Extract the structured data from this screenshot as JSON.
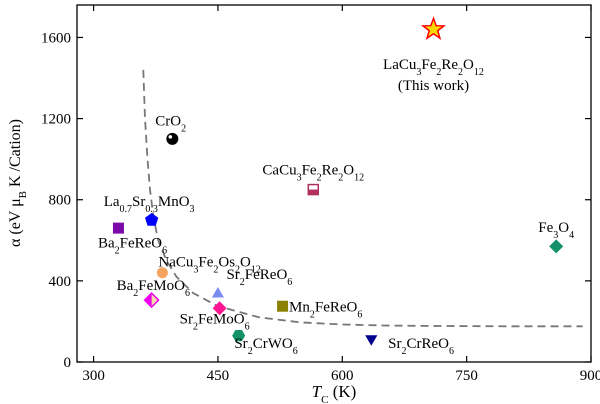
{
  "chart_data": {
    "type": "scatter",
    "xlabel_symbol": "T",
    "xlabel_subscript": "C",
    "xlabel_unit": " (K)",
    "ylabel": "α (eV μB K /Cation)",
    "ylabel_segments": [
      {
        "t": "α (eV μ",
        "sub": false
      },
      {
        "t": "B",
        "sub": true
      },
      {
        "t": " K /Cation)",
        "sub": false
      }
    ],
    "xlim": [
      280,
      900
    ],
    "ylim": [
      0,
      1760
    ],
    "xticks": [
      300,
      450,
      600,
      750,
      900
    ],
    "yticks": [
      0,
      400,
      800,
      1200,
      1600
    ],
    "grid": false,
    "points": [
      {
        "name": "LaCu3Fe2Re2O12",
        "x": 710,
        "y": 1640,
        "marker": "star",
        "color": "#ff0000",
        "fill": "#ffd700",
        "label": [
          {
            "t": "LaCu",
            "sub": false
          },
          {
            "t": "3",
            "sub": true
          },
          {
            "t": "Fe",
            "sub": false
          },
          {
            "t": "2",
            "sub": true
          },
          {
            "t": "Re",
            "sub": false
          },
          {
            "t": "2",
            "sub": true
          },
          {
            "t": "O",
            "sub": false
          },
          {
            "t": "12",
            "sub": true
          }
        ],
        "label2": "(This work)",
        "lx": 710,
        "ly": 1445,
        "anchor": "middle"
      },
      {
        "name": "CrO2",
        "x": 395,
        "y": 1100,
        "marker": "sphere",
        "color": "#000000",
        "label": [
          {
            "t": "CrO",
            "sub": false
          },
          {
            "t": "2",
            "sub": true
          }
        ],
        "lx": 393,
        "ly": 1165,
        "anchor": "middle"
      },
      {
        "name": "CaCu3Fe2Re2O12",
        "x": 565,
        "y": 850,
        "marker": "square-open",
        "color": "#b03060",
        "label": [
          {
            "t": "CaCu",
            "sub": false
          },
          {
            "t": "3",
            "sub": true
          },
          {
            "t": "Fe",
            "sub": false
          },
          {
            "t": "2",
            "sub": true
          },
          {
            "t": "Re",
            "sub": false
          },
          {
            "t": "2",
            "sub": true
          },
          {
            "t": "O",
            "sub": false
          },
          {
            "t": "12",
            "sub": true
          }
        ],
        "lx": 565,
        "ly": 925,
        "anchor": "middle"
      },
      {
        "name": "La0.7Sr0.3MnO3",
        "x": 370,
        "y": 700,
        "marker": "pentagon",
        "color": "#0000ff",
        "label": [
          {
            "t": "La",
            "sub": false
          },
          {
            "t": "0.7",
            "sub": true
          },
          {
            "t": "Sr",
            "sub": false
          },
          {
            "t": "0.3",
            "sub": true
          },
          {
            "t": "MnO",
            "sub": false
          },
          {
            "t": "3",
            "sub": true
          }
        ],
        "lx": 367,
        "ly": 770,
        "anchor": "middle"
      },
      {
        "name": "Ba2FeReO6",
        "x": 330,
        "y": 660,
        "marker": "square",
        "color": "#7b0aa8",
        "label": [
          {
            "t": "Ba",
            "sub": false
          },
          {
            "t": "2",
            "sub": true
          },
          {
            "t": "FeReO",
            "sub": false
          },
          {
            "t": "6",
            "sub": true
          }
        ],
        "lx": 347,
        "ly": 565,
        "anchor": "middle"
      },
      {
        "name": "Fe3O4",
        "x": 858,
        "y": 570,
        "marker": "diamond",
        "color": "#139269",
        "label": [
          {
            "t": "Fe",
            "sub": false
          },
          {
            "t": "3",
            "sub": true
          },
          {
            "t": "O",
            "sub": false
          },
          {
            "t": "4",
            "sub": true
          }
        ],
        "lx": 858,
        "ly": 640,
        "anchor": "middle"
      },
      {
        "name": "NaCu3Fe2Os2O12",
        "x": 383,
        "y": 440,
        "marker": "circle",
        "color": "#f4a460",
        "label": [
          {
            "t": "NaCu",
            "sub": false
          },
          {
            "t": "3",
            "sub": true
          },
          {
            "t": "Fe",
            "sub": false
          },
          {
            "t": "2",
            "sub": true
          },
          {
            "t": "Os",
            "sub": false
          },
          {
            "t": "2",
            "sub": true
          },
          {
            "t": "O",
            "sub": false
          },
          {
            "t": "12",
            "sub": true
          }
        ],
        "lx": 440,
        "ly": 470,
        "anchor": "middle"
      },
      {
        "name": "Ba2FeMoO6",
        "x": 370,
        "y": 305,
        "marker": "diamond-half",
        "color": "#ee00ee",
        "fill": "#f8d8a8",
        "label": [
          {
            "t": "Ba",
            "sub": false
          },
          {
            "t": "2",
            "sub": true
          },
          {
            "t": "FeMoO",
            "sub": false
          },
          {
            "t": "6",
            "sub": true
          }
        ],
        "lx": 372,
        "ly": 355,
        "anchor": "middle"
      },
      {
        "name": "Sr2FeReO6",
        "x": 450,
        "y": 340,
        "marker": "triangle-up",
        "color": "#7b8cf0",
        "label": [
          {
            "t": "Sr",
            "sub": false
          },
          {
            "t": "2",
            "sub": true
          },
          {
            "t": "FeReO",
            "sub": false
          },
          {
            "t": "6",
            "sub": true
          }
        ],
        "lx": 500,
        "ly": 410,
        "anchor": "middle"
      },
      {
        "name": "Mn2FeReO6",
        "x": 528,
        "y": 275,
        "marker": "square",
        "color": "#8b8000",
        "label": [
          {
            "t": "Mn",
            "sub": false
          },
          {
            "t": "2",
            "sub": true
          },
          {
            "t": "FeReO",
            "sub": false
          },
          {
            "t": "6",
            "sub": true
          }
        ],
        "lx": 580,
        "ly": 250,
        "anchor": "middle"
      },
      {
        "name": "Sr2FeMoO6",
        "x": 452,
        "y": 265,
        "marker": "diamond",
        "color": "#ff1493",
        "label": [
          {
            "t": "Sr",
            "sub": false
          },
          {
            "t": "2",
            "sub": true
          },
          {
            "t": "FeMoO",
            "sub": false
          },
          {
            "t": "6",
            "sub": true
          }
        ],
        "lx": 446,
        "ly": 190,
        "anchor": "middle"
      },
      {
        "name": "Sr2CrWO6",
        "x": 475,
        "y": 130,
        "marker": "hexagon",
        "color": "#139269",
        "label": [
          {
            "t": "Sr",
            "sub": false
          },
          {
            "t": "2",
            "sub": true
          },
          {
            "t": "CrWO",
            "sub": false
          },
          {
            "t": "6",
            "sub": true
          }
        ],
        "lx": 508,
        "ly": 68,
        "anchor": "middle"
      },
      {
        "name": "Sr2CrReO6",
        "x": 635,
        "y": 110,
        "marker": "triangle-down",
        "color": "#00008b",
        "label": [
          {
            "t": "Sr",
            "sub": false
          },
          {
            "t": "2",
            "sub": true
          },
          {
            "t": "CrReO",
            "sub": false
          },
          {
            "t": "6",
            "sub": true
          }
        ],
        "lx": 695,
        "ly": 68,
        "anchor": "middle"
      }
    ],
    "guide_line": {
      "style": "dashed",
      "color": "#777777",
      "x": [
        360,
        362,
        365,
        368,
        372,
        378,
        388,
        400,
        420,
        450,
        500,
        550,
        600,
        650,
        700,
        750,
        800,
        850,
        890
      ],
      "y": [
        1440,
        1200,
        1000,
        850,
        720,
        600,
        500,
        420,
        340,
        275,
        220,
        195,
        185,
        180,
        178,
        177,
        176,
        176,
        176
      ]
    }
  }
}
